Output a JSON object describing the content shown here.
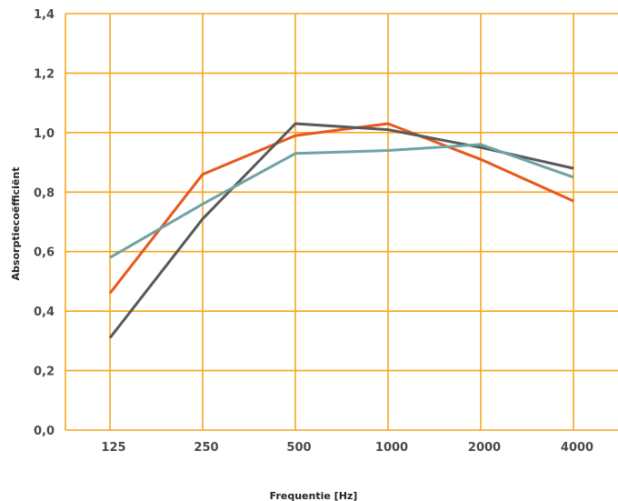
{
  "chart_data": {
    "type": "line",
    "title": "",
    "xlabel": "Frequentie [Hz]",
    "ylabel": "Absorptiecoëfficiënt",
    "categories": [
      "125",
      "250",
      "500",
      "1000",
      "2000",
      "4000"
    ],
    "yticks": [
      "0,0",
      "0,2",
      "0,4",
      "0,6",
      "0,8",
      "1,0",
      "1,2",
      "1,4"
    ],
    "ylim": [
      0,
      1.4
    ],
    "grid": true,
    "legend": "none",
    "colors": {
      "grid": "#f5a623",
      "axis": "#f5a623"
    },
    "series": [
      {
        "color": "#e8581c",
        "values": [
          0.46,
          0.86,
          0.99,
          1.03,
          0.91,
          0.77
        ]
      },
      {
        "color": "#595959",
        "values": [
          0.31,
          0.71,
          1.03,
          1.01,
          0.95,
          0.88
        ]
      },
      {
        "color": "#6fa3a3",
        "values": [
          0.58,
          0.76,
          0.93,
          0.94,
          0.96,
          0.85
        ]
      }
    ]
  }
}
